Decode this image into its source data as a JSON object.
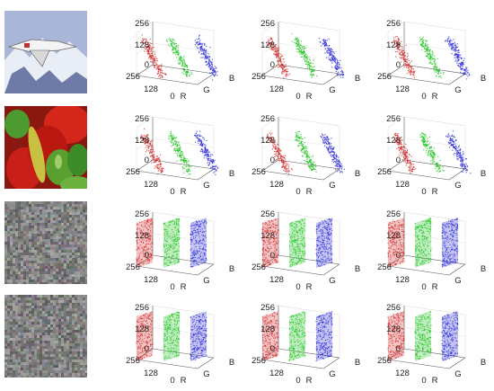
{
  "figure": {
    "rows": [
      {
        "image": "airplane-photo",
        "pattern": "correlated"
      },
      {
        "image": "peppers-photo",
        "pattern": "correlated"
      },
      {
        "image": "cipher-noise-1",
        "pattern": "uniform"
      },
      {
        "image": "cipher-noise-2",
        "pattern": "uniform"
      }
    ],
    "columns": 3,
    "plot_template": {
      "z_ticks": [
        "0",
        "128",
        "256"
      ],
      "depth_ticks": [
        "256",
        "128",
        "0"
      ],
      "channel_labels": [
        "R",
        "G",
        "B"
      ]
    },
    "colors": {
      "R": "#d42a2a",
      "G": "#22c322",
      "B": "#2a2ad4",
      "frame": "#555555",
      "grid": "#d8d8d8"
    }
  }
}
